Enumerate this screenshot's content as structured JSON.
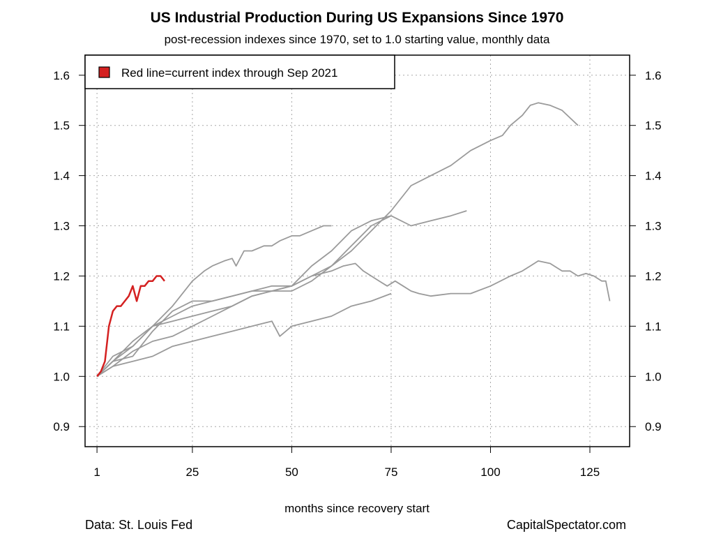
{
  "chart_data": {
    "type": "line",
    "title": "US Industrial Production During US Expansions Since 1970",
    "subtitle": "post-recession indexes since 1970, set to 1.0 starting value, monthly data",
    "xlabel": "months since recovery start",
    "ylabel": "",
    "xlim": [
      -2,
      135
    ],
    "ylim": [
      0.86,
      1.64
    ],
    "x_ticks": [
      1,
      25,
      50,
      75,
      100,
      125
    ],
    "x_tick_labels": [
      "1",
      "25",
      "50",
      "75",
      "100",
      "125"
    ],
    "y_ticks": [
      0.9,
      1.0,
      1.1,
      1.2,
      1.3,
      1.4,
      1.5,
      1.6
    ],
    "y_tick_labels": [
      "0.9",
      "1.0",
      "1.1",
      "1.2",
      "1.3",
      "1.4",
      "1.5",
      "1.6"
    ],
    "grid": true,
    "legend": {
      "label": "Red line=current index through Sep 2021",
      "placement": "top-left",
      "color": "#d42020"
    },
    "current_series": {
      "color": "#d42020",
      "points": [
        [
          1,
          1.0
        ],
        [
          2,
          1.01
        ],
        [
          3,
          1.03
        ],
        [
          4,
          1.1
        ],
        [
          5,
          1.13
        ],
        [
          6,
          1.14
        ],
        [
          7,
          1.14
        ],
        [
          8,
          1.15
        ],
        [
          9,
          1.16
        ],
        [
          10,
          1.18
        ],
        [
          11,
          1.15
        ],
        [
          12,
          1.18
        ],
        [
          13,
          1.18
        ],
        [
          14,
          1.19
        ],
        [
          15,
          1.19
        ],
        [
          16,
          1.2
        ],
        [
          17,
          1.2
        ],
        [
          18,
          1.19
        ]
      ]
    },
    "past_series_color": "#9a9a9a",
    "series": [
      {
        "points": [
          [
            1,
            1.0
          ],
          [
            5,
            1.04
          ],
          [
            10,
            1.06
          ],
          [
            15,
            1.1
          ],
          [
            20,
            1.14
          ],
          [
            25,
            1.19
          ],
          [
            28,
            1.21
          ],
          [
            30,
            1.22
          ],
          [
            33,
            1.23
          ],
          [
            35,
            1.235
          ],
          [
            36,
            1.22
          ],
          [
            38,
            1.25
          ],
          [
            40,
            1.25
          ],
          [
            43,
            1.26
          ],
          [
            45,
            1.26
          ],
          [
            47,
            1.27
          ],
          [
            50,
            1.28
          ],
          [
            52,
            1.28
          ],
          [
            55,
            1.29
          ],
          [
            58,
            1.3
          ],
          [
            60,
            1.3
          ]
        ]
      },
      {
        "points": [
          [
            1,
            1.0
          ],
          [
            5,
            1.03
          ],
          [
            10,
            1.07
          ],
          [
            15,
            1.1
          ],
          [
            20,
            1.12
          ],
          [
            25,
            1.14
          ],
          [
            30,
            1.15
          ],
          [
            35,
            1.16
          ],
          [
            40,
            1.17
          ],
          [
            45,
            1.18
          ],
          [
            50,
            1.18
          ],
          [
            55,
            1.2
          ],
          [
            60,
            1.21
          ],
          [
            63,
            1.22
          ],
          [
            66,
            1.225
          ],
          [
            68,
            1.21
          ],
          [
            70,
            1.2
          ],
          [
            72,
            1.19
          ],
          [
            74,
            1.18
          ],
          [
            76,
            1.19
          ],
          [
            78,
            1.18
          ],
          [
            80,
            1.17
          ],
          [
            82,
            1.165
          ],
          [
            85,
            1.16
          ],
          [
            90,
            1.165
          ],
          [
            95,
            1.165
          ],
          [
            100,
            1.18
          ],
          [
            105,
            1.2
          ],
          [
            108,
            1.21
          ],
          [
            110,
            1.22
          ],
          [
            112,
            1.23
          ],
          [
            115,
            1.225
          ],
          [
            118,
            1.21
          ],
          [
            120,
            1.21
          ],
          [
            122,
            1.2
          ],
          [
            124,
            1.205
          ],
          [
            126,
            1.2
          ],
          [
            128,
            1.19
          ],
          [
            129,
            1.19
          ],
          [
            130,
            1.15
          ]
        ]
      },
      {
        "points": [
          [
            1,
            1.0
          ],
          [
            5,
            1.02
          ],
          [
            10,
            1.05
          ],
          [
            15,
            1.07
          ],
          [
            20,
            1.08
          ],
          [
            25,
            1.1
          ],
          [
            30,
            1.12
          ],
          [
            35,
            1.14
          ],
          [
            40,
            1.16
          ],
          [
            45,
            1.17
          ],
          [
            50,
            1.18
          ],
          [
            55,
            1.22
          ],
          [
            60,
            1.25
          ],
          [
            65,
            1.29
          ],
          [
            70,
            1.31
          ],
          [
            75,
            1.32
          ],
          [
            80,
            1.3
          ],
          [
            85,
            1.31
          ],
          [
            90,
            1.32
          ],
          [
            94,
            1.33
          ]
        ]
      },
      {
        "points": [
          [
            1,
            1.0
          ],
          [
            5,
            1.03
          ],
          [
            10,
            1.06
          ],
          [
            15,
            1.1
          ],
          [
            20,
            1.11
          ],
          [
            25,
            1.12
          ],
          [
            30,
            1.13
          ],
          [
            35,
            1.14
          ],
          [
            40,
            1.16
          ],
          [
            45,
            1.17
          ],
          [
            50,
            1.17
          ],
          [
            55,
            1.19
          ],
          [
            60,
            1.22
          ],
          [
            65,
            1.25
          ],
          [
            70,
            1.29
          ],
          [
            75,
            1.33
          ],
          [
            80,
            1.38
          ],
          [
            85,
            1.4
          ],
          [
            90,
            1.42
          ],
          [
            95,
            1.45
          ],
          [
            100,
            1.47
          ],
          [
            103,
            1.48
          ],
          [
            105,
            1.5
          ],
          [
            108,
            1.52
          ],
          [
            110,
            1.54
          ],
          [
            112,
            1.545
          ],
          [
            115,
            1.54
          ],
          [
            118,
            1.53
          ],
          [
            120,
            1.515
          ],
          [
            122,
            1.5
          ]
        ]
      },
      {
        "points": [
          [
            1,
            1.0
          ],
          [
            5,
            1.02
          ],
          [
            10,
            1.03
          ],
          [
            15,
            1.04
          ],
          [
            20,
            1.06
          ],
          [
            25,
            1.07
          ],
          [
            30,
            1.08
          ],
          [
            35,
            1.09
          ],
          [
            40,
            1.1
          ],
          [
            45,
            1.11
          ],
          [
            47,
            1.08
          ],
          [
            50,
            1.1
          ],
          [
            55,
            1.11
          ],
          [
            60,
            1.12
          ],
          [
            65,
            1.14
          ],
          [
            70,
            1.15
          ],
          [
            75,
            1.165
          ]
        ]
      },
      {
        "points": [
          [
            1,
            1.0
          ],
          [
            5,
            1.03
          ],
          [
            10,
            1.04
          ],
          [
            15,
            1.09
          ],
          [
            20,
            1.13
          ],
          [
            25,
            1.15
          ],
          [
            30,
            1.15
          ],
          [
            35,
            1.16
          ],
          [
            40,
            1.17
          ],
          [
            45,
            1.17
          ],
          [
            50,
            1.18
          ],
          [
            55,
            1.2
          ],
          [
            60,
            1.22
          ],
          [
            65,
            1.26
          ],
          [
            70,
            1.3
          ],
          [
            75,
            1.32
          ]
        ]
      }
    ]
  },
  "footer": {
    "source": "Data: St. Louis Fed",
    "credit": "CapitalSpectator.com"
  }
}
